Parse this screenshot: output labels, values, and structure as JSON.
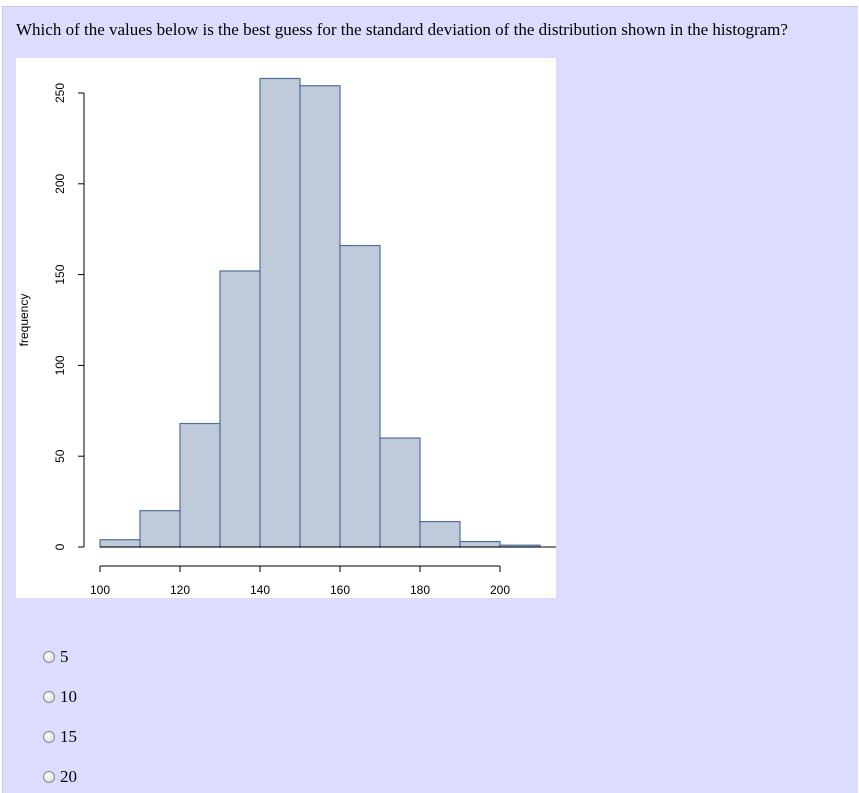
{
  "question": {
    "text": "Which of the values below is the best guess for the standard deviation of the distribution shown in the histogram?"
  },
  "chart_data": {
    "type": "bar",
    "subtype": "histogram",
    "title": "",
    "xlabel": "",
    "ylabel": "frequency",
    "bins": [
      {
        "start": 100,
        "end": 110,
        "count": 4
      },
      {
        "start": 110,
        "end": 120,
        "count": 20
      },
      {
        "start": 120,
        "end": 130,
        "count": 68
      },
      {
        "start": 130,
        "end": 140,
        "count": 152
      },
      {
        "start": 140,
        "end": 150,
        "count": 258
      },
      {
        "start": 150,
        "end": 160,
        "count": 254
      },
      {
        "start": 160,
        "end": 170,
        "count": 166
      },
      {
        "start": 170,
        "end": 180,
        "count": 60
      },
      {
        "start": 180,
        "end": 190,
        "count": 14
      },
      {
        "start": 190,
        "end": 200,
        "count": 3
      },
      {
        "start": 200,
        "end": 210,
        "count": 1
      }
    ],
    "xlim": [
      100,
      210
    ],
    "ylim": [
      0,
      260
    ],
    "x_ticks": [
      "100",
      "120",
      "140",
      "160",
      "180",
      "200"
    ],
    "y_ticks": [
      "0",
      "50",
      "100",
      "150",
      "200",
      "250"
    ],
    "bar_color": "#bfcbdb",
    "bar_edge_color": "#4f6e99",
    "grid": false,
    "legend": "none"
  },
  "options": [
    {
      "label": "5",
      "selected": false
    },
    {
      "label": "10",
      "selected": false
    },
    {
      "label": "15",
      "selected": false
    },
    {
      "label": "20",
      "selected": false
    }
  ]
}
